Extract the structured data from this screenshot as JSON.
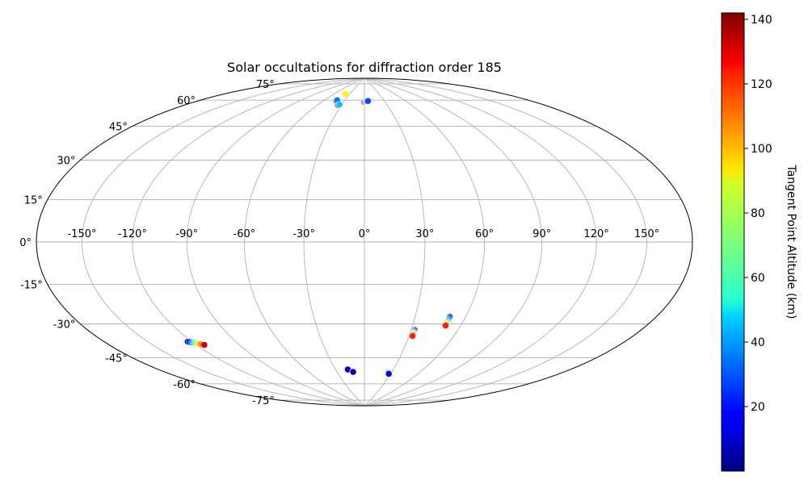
{
  "chart_data": {
    "type": "scatter",
    "projection": "hammer",
    "title": "Solar occultations for diffraction order 185",
    "xlabel": "",
    "ylabel": "",
    "lon_ticks": [
      -150,
      -120,
      -90,
      -60,
      -30,
      0,
      30,
      60,
      90,
      120,
      150
    ],
    "lat_ticks": [
      -75,
      -60,
      -45,
      -30,
      -15,
      0,
      15,
      30,
      45,
      60,
      75
    ],
    "lon_tick_labels": [
      "-150°",
      "-120°",
      "-90°",
      "-60°",
      "-30°",
      "0°",
      "30°",
      "60°",
      "90°",
      "120°",
      "150°"
    ],
    "lat_tick_labels": [
      "-75°",
      "-60°",
      "-45°",
      "-30°",
      "-15°",
      "0°",
      "15°",
      "30°",
      "45°",
      "60°",
      "75°"
    ],
    "grid": true,
    "colorbar": {
      "label": "Tangent Point Altitude (km)",
      "colormap": "jet",
      "range": [
        0,
        142
      ],
      "ticks": [
        20,
        40,
        60,
        80,
        100,
        120,
        140
      ],
      "tick_labels": [
        "20",
        "40",
        "60",
        "80",
        "100",
        "120",
        "140"
      ]
    },
    "series": [
      {
        "lon": [
          -42,
          -41.5,
          -41,
          -40.5,
          -40,
          -39.5,
          -39,
          -38.5,
          -38.2
        ],
        "lat": [
          79,
          79,
          79,
          79,
          79,
          79,
          79,
          79,
          79
        ],
        "alt": [
          130,
          124,
          118,
          112,
          106,
          100,
          96,
          92,
          90
        ]
      },
      {
        "lon": [
          -42.2,
          -41.9,
          -41.6
        ],
        "lat": [
          74.5,
          74.7,
          74.9
        ],
        "alt": [
          15,
          25,
          35
        ]
      },
      {
        "lon": [
          -34.5,
          -33.8,
          -33.2
        ],
        "lat": [
          72,
          72.2,
          72.4
        ],
        "alt": [
          130,
          125,
          45
        ]
      },
      {
        "lon": [
          -0.5,
          0.5,
          1.5,
          2.5,
          3.5,
          4.5,
          5.5
        ],
        "lat": [
          74.4,
          74.5,
          74.6,
          74.7,
          74.8,
          74.9,
          75
        ],
        "alt": [
          135,
          128,
          120,
          112,
          40,
          32,
          28
        ]
      },
      {
        "lon": [
          -122.9,
          -122,
          -121,
          -120,
          -119,
          -118,
          -117,
          -116,
          -115,
          -114.5
        ],
        "lat": [
          -44.8,
          -45,
          -45.3,
          -45.6,
          -45.9,
          -46.2,
          -46.5,
          -46.8,
          -47.1,
          -47.3
        ],
        "alt": [
          5,
          15,
          30,
          48,
          65,
          82,
          95,
          108,
          120,
          132
        ]
      },
      {
        "lon": [
          -17.5,
          -17.3
        ],
        "lat": [
          -66.5,
          -66.7
        ],
        "alt": [
          5,
          8
        ]
      },
      {
        "lon": [
          -12.6,
          -12.4
        ],
        "lat": [
          -68,
          -68.2
        ],
        "alt": [
          5,
          8
        ]
      },
      {
        "lon": [
          26.4,
          26.8,
          27.2,
          27.6,
          28.0
        ],
        "lat": [
          -68.3,
          -68.5,
          -68.7,
          -68.9,
          -69.1
        ],
        "alt": [
          5,
          7,
          9,
          11,
          13
        ]
      },
      {
        "lon": [
          32.4,
          32.4,
          32.4,
          32.4,
          32.4,
          32.4,
          32.4,
          32.4,
          32.4
        ],
        "lat": [
          -44.3,
          -44.7,
          -45.1,
          -45.5,
          -45.9,
          -46.3,
          -46.7,
          -47.1,
          -47.5
        ],
        "alt": [
          5,
          10,
          20,
          40,
          65,
          90,
          100,
          110,
          120
        ]
      },
      {
        "lon": [
          50.6,
          50.6,
          50.6,
          50.6,
          50.6,
          50.6,
          50.6,
          50.6,
          50.6,
          50.6
        ],
        "lat": [
          -36.9,
          -37.4,
          -37.9,
          -38.4,
          -38.9,
          -39.4,
          -39.9,
          -40.4,
          -40.9,
          -41.4
        ],
        "alt": [
          5,
          12,
          22,
          32,
          42,
          52,
          62,
          80,
          100,
          120
        ]
      }
    ]
  }
}
